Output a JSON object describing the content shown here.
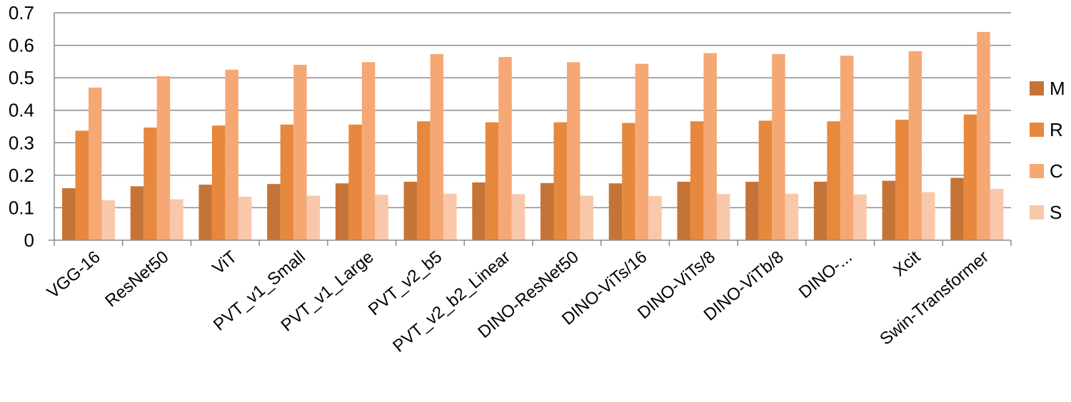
{
  "chart_data": {
    "type": "bar",
    "title": "",
    "xlabel": "",
    "ylabel": "",
    "categories": [
      "VGG-16",
      "ResNet50",
      "ViT",
      "PVT_v1_Small",
      "PVT_v1_Large",
      "PVT_v2_b5",
      "PVT_v2_b2_Linear",
      "DINO-ResNet50",
      "DINO-ViTs/16",
      "DINO-ViTs/8",
      "DINO-ViTb/8",
      "DINO-...",
      "Xcit",
      "Swin-Transformer"
    ],
    "series": [
      {
        "name": "M",
        "color": "#c57437",
        "values": [
          0.16,
          0.166,
          0.171,
          0.173,
          0.175,
          0.18,
          0.178,
          0.176,
          0.175,
          0.18,
          0.18,
          0.18,
          0.183,
          0.192
        ]
      },
      {
        "name": "R",
        "color": "#e6883e",
        "values": [
          0.337,
          0.347,
          0.353,
          0.356,
          0.356,
          0.366,
          0.363,
          0.363,
          0.361,
          0.366,
          0.368,
          0.366,
          0.371,
          0.387
        ]
      },
      {
        "name": "C",
        "color": "#f6a874",
        "values": [
          0.47,
          0.505,
          0.525,
          0.54,
          0.548,
          0.573,
          0.564,
          0.548,
          0.543,
          0.576,
          0.573,
          0.568,
          0.582,
          0.641
        ]
      },
      {
        "name": "S",
        "color": "#f9c8ab",
        "values": [
          0.123,
          0.126,
          0.134,
          0.137,
          0.14,
          0.143,
          0.142,
          0.137,
          0.136,
          0.142,
          0.143,
          0.141,
          0.148,
          0.158
        ]
      }
    ],
    "ylim": [
      0,
      0.7
    ],
    "y_ticks": [
      "0",
      "0.1",
      "0.2",
      "0.3",
      "0.4",
      "0.5",
      "0.6",
      "0.7"
    ],
    "grid": true,
    "legend_position": "right"
  }
}
